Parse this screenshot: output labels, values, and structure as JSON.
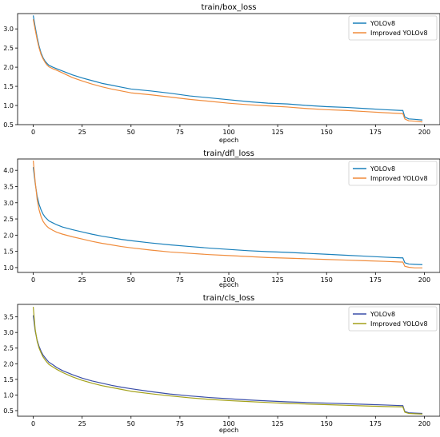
{
  "chart_data": [
    {
      "type": "line",
      "title": "train/box_loss",
      "xlabel": "epoch",
      "ylabel": "",
      "xlim": [
        -8,
        208
      ],
      "ylim": [
        0.5,
        3.4
      ],
      "xticks": [
        0,
        25,
        50,
        75,
        100,
        125,
        150,
        175,
        200
      ],
      "yticks": [
        0.5,
        1.0,
        1.5,
        2.0,
        2.5,
        3.0
      ],
      "legend": "top-right",
      "series": [
        {
          "name": "YOLOv8",
          "color": "#1a80bb",
          "x": [
            0,
            1,
            2,
            3,
            4,
            5,
            6,
            7,
            8,
            10,
            12,
            15,
            20,
            25,
            30,
            35,
            40,
            45,
            50,
            60,
            70,
            80,
            90,
            100,
            110,
            120,
            130,
            140,
            150,
            160,
            170,
            180,
            188,
            189,
            190,
            192,
            195,
            199
          ],
          "values": [
            3.35,
            3.05,
            2.78,
            2.55,
            2.37,
            2.25,
            2.16,
            2.1,
            2.05,
            2.0,
            1.96,
            1.9,
            1.8,
            1.72,
            1.65,
            1.58,
            1.53,
            1.48,
            1.43,
            1.38,
            1.32,
            1.25,
            1.2,
            1.15,
            1.1,
            1.06,
            1.04,
            1.0,
            0.97,
            0.95,
            0.92,
            0.89,
            0.87,
            0.87,
            0.7,
            0.65,
            0.64,
            0.62
          ]
        },
        {
          "name": "Improved YOLOv8",
          "color": "#f08c3c",
          "x": [
            0,
            1,
            2,
            3,
            4,
            5,
            6,
            7,
            8,
            10,
            12,
            15,
            20,
            25,
            30,
            35,
            40,
            45,
            50,
            60,
            70,
            80,
            90,
            100,
            110,
            120,
            130,
            140,
            150,
            160,
            170,
            180,
            188,
            189,
            190,
            192,
            195,
            199
          ],
          "values": [
            3.25,
            2.98,
            2.72,
            2.5,
            2.33,
            2.22,
            2.13,
            2.06,
            2.01,
            1.96,
            1.92,
            1.85,
            1.73,
            1.64,
            1.56,
            1.49,
            1.43,
            1.38,
            1.33,
            1.28,
            1.22,
            1.16,
            1.11,
            1.06,
            1.02,
            0.99,
            0.96,
            0.92,
            0.89,
            0.87,
            0.84,
            0.81,
            0.79,
            0.79,
            0.65,
            0.6,
            0.59,
            0.57
          ]
        }
      ]
    },
    {
      "type": "line",
      "title": "train/dfl_loss",
      "xlabel": "epoch",
      "ylabel": "",
      "xlim": [
        -8,
        208
      ],
      "ylim": [
        0.85,
        4.35
      ],
      "xticks": [
        0,
        25,
        50,
        75,
        100,
        125,
        150,
        175,
        200
      ],
      "yticks": [
        1.0,
        1.5,
        2.0,
        2.5,
        3.0,
        3.5,
        4.0
      ],
      "legend": "top-right",
      "series": [
        {
          "name": "YOLOv8",
          "color": "#1a80bb",
          "x": [
            0,
            1,
            2,
            3,
            4,
            5,
            6,
            7,
            8,
            10,
            12,
            15,
            20,
            25,
            30,
            35,
            40,
            45,
            50,
            60,
            70,
            80,
            90,
            100,
            110,
            120,
            130,
            140,
            150,
            160,
            170,
            180,
            188,
            189,
            190,
            192,
            195,
            199
          ],
          "values": [
            4.1,
            3.6,
            3.2,
            2.95,
            2.78,
            2.65,
            2.56,
            2.5,
            2.44,
            2.38,
            2.32,
            2.25,
            2.17,
            2.1,
            2.03,
            1.97,
            1.92,
            1.87,
            1.83,
            1.76,
            1.7,
            1.65,
            1.6,
            1.56,
            1.52,
            1.49,
            1.47,
            1.44,
            1.41,
            1.38,
            1.35,
            1.32,
            1.3,
            1.3,
            1.15,
            1.11,
            1.1,
            1.09
          ]
        },
        {
          "name": "Improved YOLOv8",
          "color": "#f08c3c",
          "x": [
            0,
            1,
            2,
            3,
            4,
            5,
            6,
            7,
            8,
            10,
            12,
            15,
            20,
            25,
            30,
            35,
            40,
            45,
            50,
            60,
            70,
            80,
            90,
            100,
            110,
            120,
            130,
            140,
            150,
            160,
            170,
            180,
            188,
            189,
            190,
            192,
            195,
            199
          ],
          "values": [
            4.3,
            3.65,
            3.1,
            2.78,
            2.57,
            2.43,
            2.34,
            2.27,
            2.22,
            2.15,
            2.09,
            2.03,
            1.95,
            1.88,
            1.81,
            1.75,
            1.7,
            1.65,
            1.61,
            1.54,
            1.48,
            1.44,
            1.4,
            1.37,
            1.34,
            1.31,
            1.29,
            1.27,
            1.25,
            1.23,
            1.21,
            1.19,
            1.17,
            1.17,
            1.04,
            1.01,
            0.99,
            0.99
          ]
        }
      ]
    },
    {
      "type": "line",
      "title": "train/cls_loss",
      "xlabel": "epoch",
      "ylabel": "",
      "xlim": [
        -8,
        208
      ],
      "ylim": [
        0.32,
        3.9
      ],
      "xticks": [
        0,
        25,
        50,
        75,
        100,
        125,
        150,
        175,
        200
      ],
      "yticks": [
        0.5,
        1.0,
        1.5,
        2.0,
        2.5,
        3.0,
        3.5
      ],
      "legend": "top-right",
      "series": [
        {
          "name": "YOLOv8",
          "color": "#3a4ea8",
          "x": [
            0,
            1,
            2,
            3,
            4,
            5,
            6,
            7,
            8,
            10,
            12,
            15,
            20,
            25,
            30,
            35,
            40,
            45,
            50,
            60,
            70,
            80,
            90,
            100,
            110,
            120,
            130,
            140,
            150,
            160,
            170,
            180,
            188,
            189,
            190,
            192,
            195,
            199
          ],
          "values": [
            3.55,
            3.05,
            2.75,
            2.55,
            2.4,
            2.28,
            2.2,
            2.12,
            2.05,
            1.97,
            1.88,
            1.78,
            1.65,
            1.54,
            1.45,
            1.38,
            1.31,
            1.25,
            1.2,
            1.11,
            1.03,
            0.97,
            0.92,
            0.88,
            0.84,
            0.81,
            0.78,
            0.76,
            0.74,
            0.72,
            0.7,
            0.68,
            0.66,
            0.66,
            0.47,
            0.43,
            0.42,
            0.41
          ]
        },
        {
          "name": "Improved YOLOv8",
          "color": "#a3a11a",
          "x": [
            0,
            1,
            2,
            3,
            4,
            5,
            6,
            7,
            8,
            10,
            12,
            15,
            20,
            25,
            30,
            35,
            40,
            45,
            50,
            60,
            70,
            80,
            90,
            100,
            110,
            120,
            130,
            140,
            150,
            160,
            170,
            180,
            188,
            189,
            190,
            192,
            195,
            199
          ],
          "values": [
            3.82,
            3.1,
            2.72,
            2.5,
            2.35,
            2.22,
            2.13,
            2.05,
            1.98,
            1.9,
            1.82,
            1.72,
            1.58,
            1.47,
            1.38,
            1.3,
            1.24,
            1.18,
            1.12,
            1.04,
            0.97,
            0.91,
            0.86,
            0.82,
            0.79,
            0.76,
            0.73,
            0.71,
            0.69,
            0.67,
            0.65,
            0.63,
            0.62,
            0.62,
            0.45,
            0.41,
            0.4,
            0.39
          ]
        }
      ]
    }
  ]
}
